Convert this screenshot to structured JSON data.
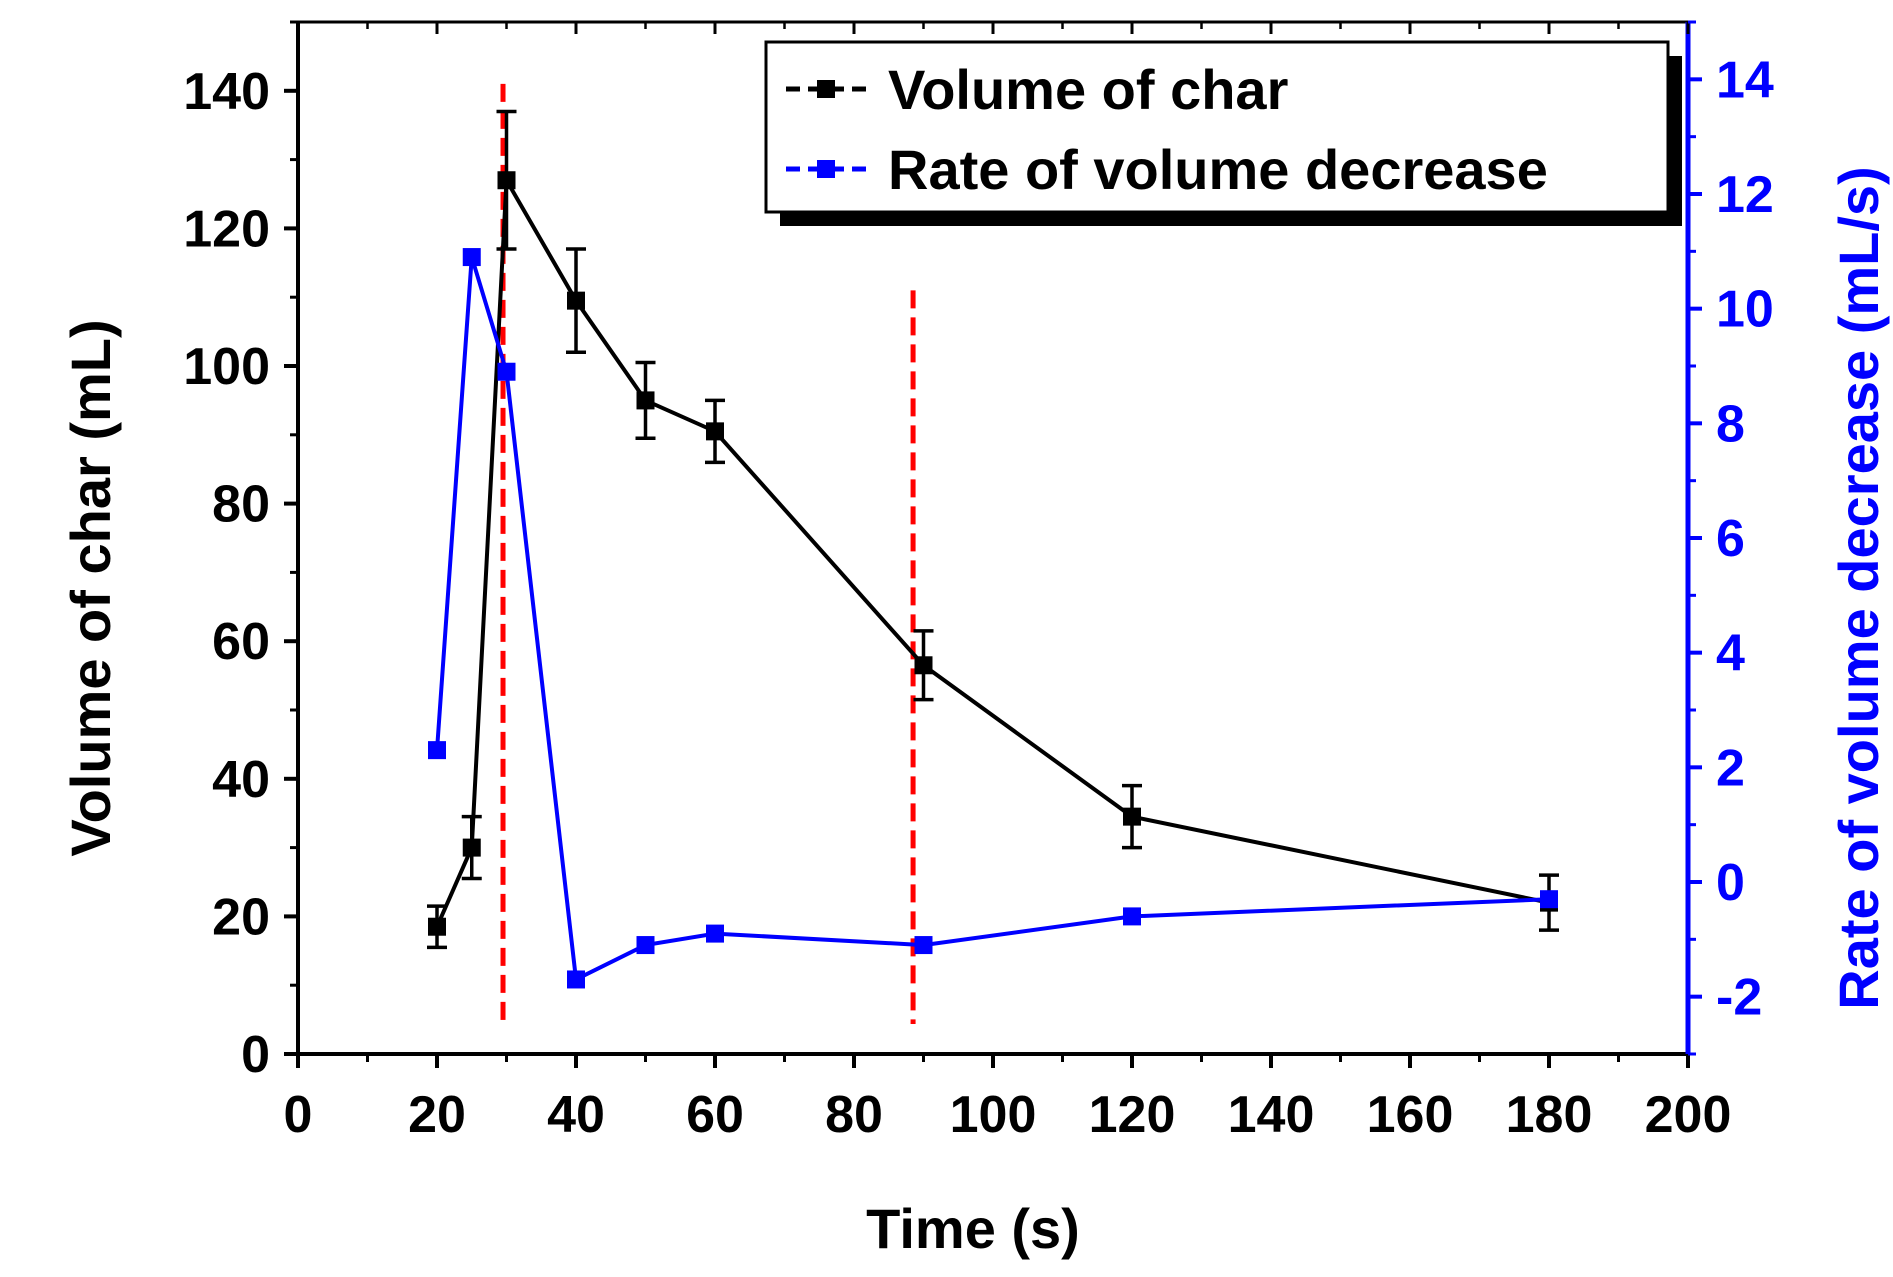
{
  "chart_data": {
    "type": "line",
    "title": "",
    "xlabel": "Time (s)",
    "ylabel": "Volume of char (mL)",
    "y2label": "Rate of volume decrease (mL/s)",
    "xlim": [
      0,
      200
    ],
    "ylim": [
      0,
      150
    ],
    "y2lim": [
      -3,
      15
    ],
    "x_ticks": [
      0,
      20,
      40,
      60,
      80,
      100,
      120,
      140,
      160,
      180,
      200
    ],
    "y_ticks": [
      0,
      20,
      40,
      60,
      80,
      100,
      120,
      140
    ],
    "y2_ticks": [
      -2,
      0,
      2,
      4,
      6,
      8,
      10,
      12,
      14
    ],
    "grid": false,
    "legend_position": "top-right",
    "series": [
      {
        "name": "Volume of char",
        "axis": "left",
        "color": "#000000",
        "marker": "square",
        "x": [
          20,
          25,
          30,
          40,
          50,
          60,
          90,
          120,
          180
        ],
        "values": [
          18.5,
          30,
          127,
          109.5,
          95,
          90.5,
          56.5,
          34.5,
          22
        ],
        "errors": [
          3,
          4.5,
          10,
          7.5,
          5.5,
          4.5,
          5,
          4.5,
          4
        ]
      },
      {
        "name": "Rate of volume decrease",
        "axis": "right",
        "color": "#0000ff",
        "marker": "square",
        "x": [
          20,
          25,
          30,
          40,
          50,
          60,
          90,
          120,
          180
        ],
        "values": [
          2.3,
          10.9,
          8.9,
          -1.7,
          -1.1,
          -0.9,
          -1.1,
          -0.6,
          -0.3
        ]
      }
    ],
    "reference_lines": [
      {
        "x": 29.5,
        "color": "#ff0000",
        "style": "dashed",
        "top_value": 141
      },
      {
        "x": 88.5,
        "color": "#ff0000",
        "style": "dashed",
        "top_value": 111
      }
    ]
  }
}
